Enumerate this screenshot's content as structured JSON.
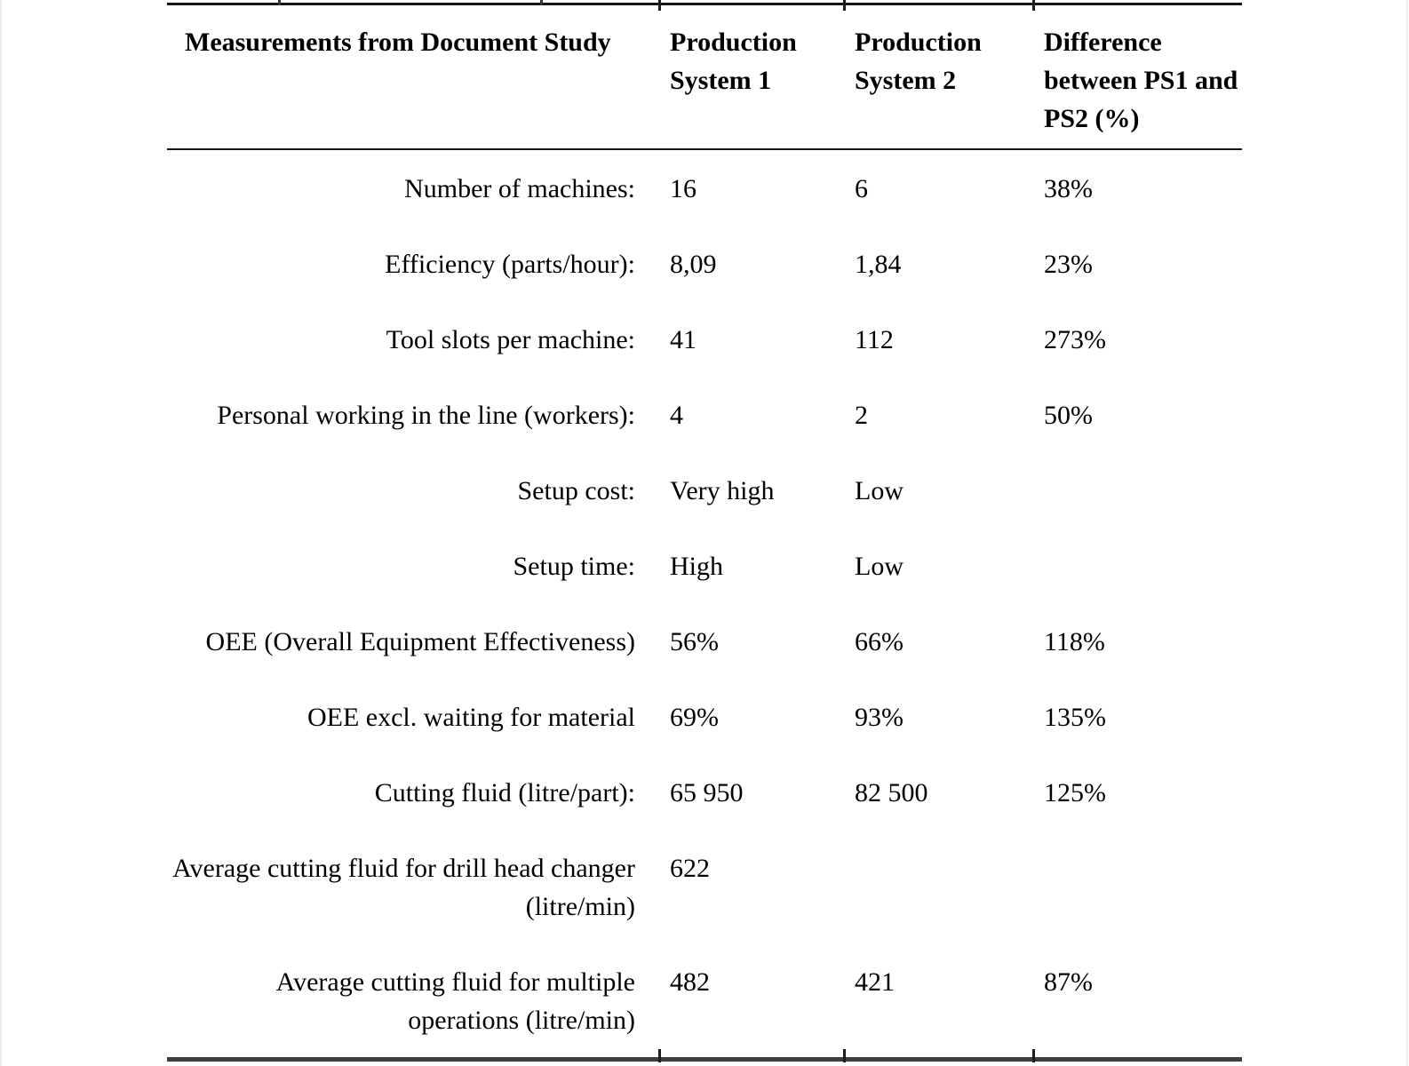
{
  "table": {
    "columns": [
      {
        "header": "Measurements from Document Study"
      },
      {
        "header": "Production System 1"
      },
      {
        "header": "Production System 2"
      },
      {
        "header": "Difference between PS1 and PS2 (%)"
      }
    ],
    "rows": [
      {
        "label": "Number of machines:",
        "ps1": "16",
        "ps2": "6",
        "diff": "38%"
      },
      {
        "label": "Efficiency (parts/hour):",
        "ps1": "8,09",
        "ps2": "1,84",
        "diff": "23%"
      },
      {
        "label": "Tool slots per machine:",
        "ps1": "41",
        "ps2": "112",
        "diff": "273%"
      },
      {
        "label": "Personal working in the line (workers):",
        "ps1": "4",
        "ps2": "2",
        "diff": "50%"
      },
      {
        "label": "Setup cost:",
        "ps1": "Very high",
        "ps2": "Low",
        "diff": ""
      },
      {
        "label": "Setup time:",
        "ps1": "High",
        "ps2": "Low",
        "diff": ""
      },
      {
        "label": "OEE (Overall Equipment Effectiveness)",
        "ps1": "56%",
        "ps2": "66%",
        "diff": "118%"
      },
      {
        "label": "OEE excl. waiting for material",
        "ps1": "69%",
        "ps2": "93%",
        "diff": "135%"
      },
      {
        "label": "Cutting fluid (litre/part):",
        "ps1": "65 950",
        "ps2": "82 500",
        "diff": "125%"
      },
      {
        "label": "Average cutting fluid for drill head changer (litre/min)",
        "ps1": "622",
        "ps2": "",
        "diff": ""
      },
      {
        "label": "Average cutting fluid for multiple operations (litre/min)",
        "ps1": "482",
        "ps2": "421",
        "diff": "87%"
      }
    ]
  }
}
